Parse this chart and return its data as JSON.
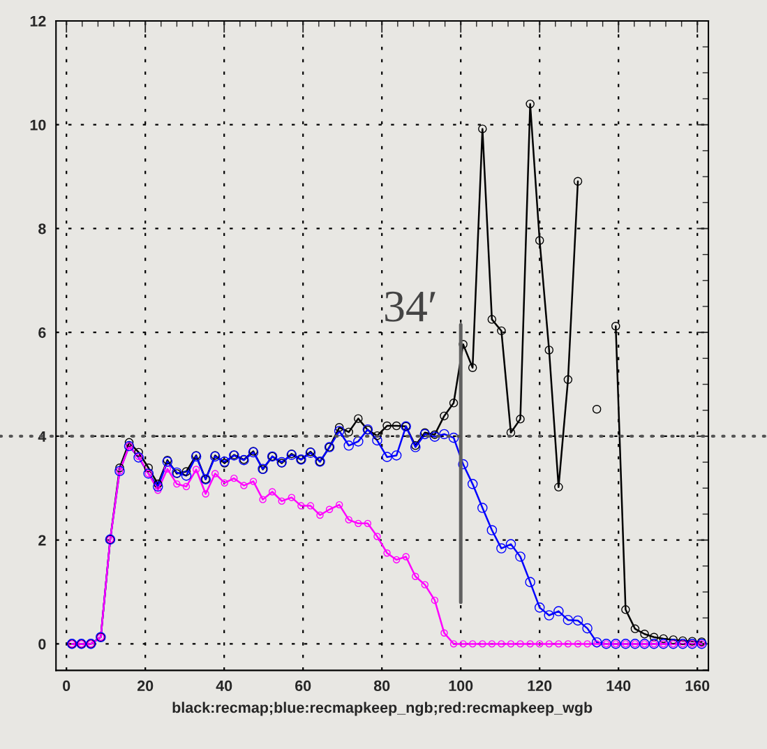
{
  "chart_data": {
    "type": "line",
    "xlabel": "black:recmap;blue:recmapkeep_ngb;red:recmapkeep_wgb",
    "x": [
      1.4,
      3.8,
      6.2,
      8.7,
      11.1,
      13.5,
      15.9,
      18.3,
      20.8,
      23.2,
      25.6,
      28.0,
      30.4,
      32.9,
      35.3,
      37.7,
      40.1,
      42.5,
      45.0,
      47.4,
      49.8,
      52.2,
      54.6,
      57.1,
      59.5,
      61.9,
      64.3,
      66.7,
      69.2,
      71.6,
      74.0,
      76.4,
      78.8,
      81.3,
      83.7,
      86.1,
      88.5,
      90.9,
      93.4,
      95.8,
      98.2,
      100.6,
      103.0,
      105.5,
      107.9,
      110.3,
      112.7,
      115.1,
      117.6,
      120.0,
      122.4,
      124.8,
      127.2,
      129.7,
      132.1,
      134.5,
      136.9,
      139.3,
      141.8,
      144.2,
      146.6,
      149.0,
      151.4,
      153.9,
      156.3,
      158.7,
      161.1
    ],
    "series": [
      {
        "color": "#000000",
        "values": [
          0,
          0,
          0,
          0.13,
          2.01,
          3.39,
          3.88,
          3.69,
          3.39,
          3.08,
          3.54,
          3.28,
          3.32,
          3.63,
          3.17,
          3.63,
          3.48,
          3.64,
          3.55,
          3.71,
          3.36,
          3.61,
          3.48,
          3.66,
          3.55,
          3.7,
          3.51,
          3.79,
          4.17,
          4.08,
          4.34,
          4.12,
          4.01,
          4.2,
          4.2,
          4.19,
          3.82,
          4.07,
          4.03,
          4.39,
          4.64,
          5.77,
          5.32,
          9.92,
          6.25,
          6.03,
          4.07,
          4.33,
          10.4,
          7.77,
          5.66,
          3.02,
          5.09,
          8.91,
          null,
          4.52,
          null,
          6.12,
          0.66,
          0.29,
          0.19,
          0.13,
          0.1,
          0.08,
          0.06,
          0.05,
          0.04
        ]
      },
      {
        "color": "#0000ff",
        "values": [
          0,
          0,
          0,
          0.13,
          2.01,
          3.33,
          3.81,
          3.59,
          3.28,
          3.03,
          3.51,
          3.3,
          3.24,
          3.61,
          3.17,
          3.61,
          3.51,
          3.63,
          3.54,
          3.69,
          3.37,
          3.61,
          3.5,
          3.64,
          3.55,
          3.68,
          3.51,
          3.79,
          4.1,
          3.82,
          3.9,
          4.13,
          3.92,
          3.6,
          3.63,
          4.19,
          3.79,
          4.04,
          3.99,
          4.04,
          3.97,
          3.46,
          3.08,
          2.62,
          2.19,
          1.84,
          1.92,
          1.68,
          1.19,
          0.7,
          0.55,
          0.63,
          0.46,
          0.45,
          0.3,
          0.03,
          0,
          0,
          0,
          0,
          0,
          0,
          0,
          0,
          0,
          0,
          0
        ]
      },
      {
        "color": "#ff00ff",
        "values": [
          0,
          0,
          0,
          0.13,
          2.01,
          3.33,
          3.81,
          3.61,
          3.28,
          2.96,
          3.37,
          3.08,
          3.03,
          3.36,
          2.89,
          3.28,
          3.1,
          3.19,
          3.05,
          3.13,
          2.78,
          2.93,
          2.75,
          2.82,
          2.66,
          2.66,
          2.48,
          2.59,
          2.68,
          2.39,
          2.32,
          2.32,
          2.07,
          1.75,
          1.62,
          1.68,
          1.3,
          1.14,
          0.84,
          0.21,
          0,
          0,
          0,
          0,
          0,
          0,
          0,
          0,
          0,
          0,
          0,
          0,
          0,
          0,
          0,
          0,
          0,
          0,
          0,
          0,
          0,
          0,
          0,
          0,
          0,
          0,
          0
        ]
      }
    ],
    "xlim": [
      -2.65,
      162.8
    ],
    "ylim": [
      -0.51,
      12
    ],
    "xticks": [
      0,
      20,
      40,
      60,
      80,
      100,
      120,
      140,
      160
    ],
    "yticks": [
      0,
      2,
      4,
      6,
      8,
      10,
      12
    ],
    "grid": true,
    "legend": false,
    "marker": "circle",
    "line_style": "solid",
    "ref_lines": [
      {
        "axis": "y",
        "value": 4,
        "color": "#555555",
        "line_style": "dotted"
      },
      {
        "axis": "x",
        "value": 100,
        "label": "34′",
        "color": "#606060",
        "line_style": "solid"
      }
    ]
  }
}
